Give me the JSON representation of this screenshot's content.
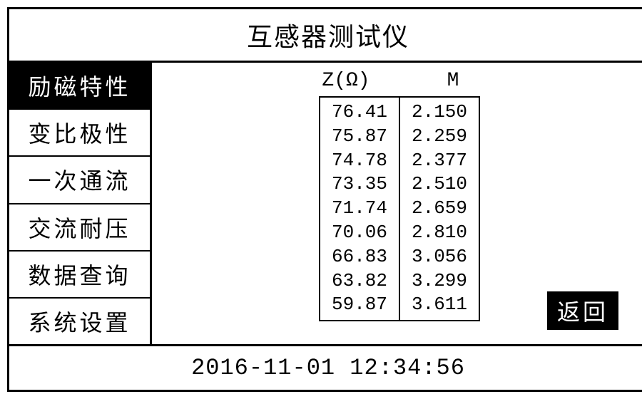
{
  "title": "互感器测试仪",
  "sidebar": {
    "items": [
      {
        "label": "励磁特性",
        "selected": true
      },
      {
        "label": "变比极性",
        "selected": false
      },
      {
        "label": "一次通流",
        "selected": false
      },
      {
        "label": "交流耐压",
        "selected": false
      },
      {
        "label": "数据查询",
        "selected": false
      },
      {
        "label": "系统设置",
        "selected": false
      }
    ]
  },
  "table": {
    "type": "table",
    "columns": [
      {
        "key": "z",
        "label": "Z(Ω)"
      },
      {
        "key": "m",
        "label": "M"
      }
    ],
    "rows": [
      {
        "z": "76.41",
        "m": "2.150"
      },
      {
        "z": "75.87",
        "m": "2.259"
      },
      {
        "z": "74.78",
        "m": "2.377"
      },
      {
        "z": "73.35",
        "m": "2.510"
      },
      {
        "z": "71.74",
        "m": "2.659"
      },
      {
        "z": "70.06",
        "m": "2.810"
      },
      {
        "z": "66.83",
        "m": "3.056"
      },
      {
        "z": "63.82",
        "m": "3.299"
      },
      {
        "z": "59.87",
        "m": "3.611"
      }
    ],
    "border_color": "#000000",
    "background_color": "#ffffff",
    "font_family": "Courier New",
    "font_size_pt": 20
  },
  "return_button": {
    "label": "返回"
  },
  "status": {
    "datetime": "2016-11-01 12:34:56"
  },
  "colors": {
    "border": "#000000",
    "background": "#ffffff",
    "selected_bg": "#000000",
    "selected_fg": "#ffffff",
    "text": "#000000"
  }
}
